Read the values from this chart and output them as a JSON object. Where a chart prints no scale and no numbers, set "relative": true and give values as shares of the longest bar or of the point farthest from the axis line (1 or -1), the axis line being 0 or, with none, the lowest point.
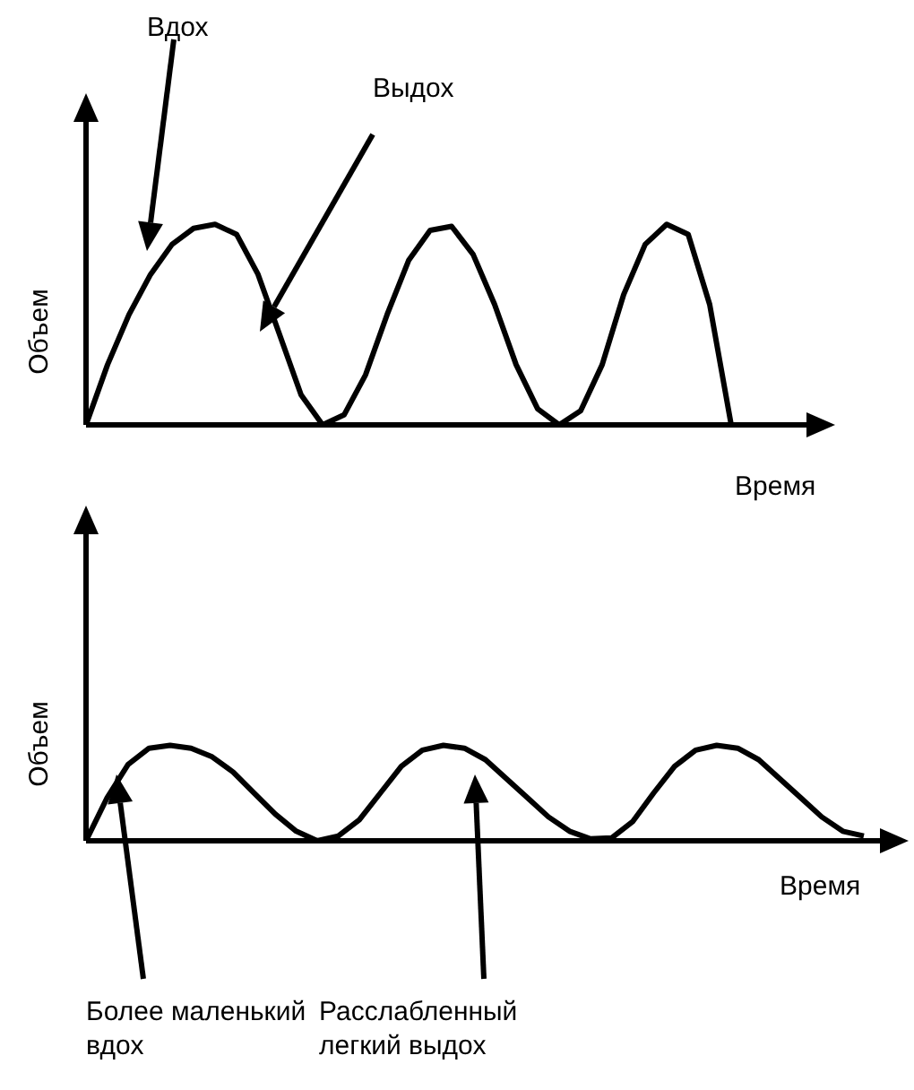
{
  "chart_data": [
    {
      "type": "line",
      "relative": true,
      "xlabel": "Время",
      "ylabel": "Объем",
      "categories": [
        null,
        null,
        null,
        null,
        null,
        null,
        null,
        null,
        null,
        null,
        null,
        null,
        null,
        null,
        null,
        null,
        null,
        null,
        null,
        null,
        null,
        null,
        null,
        null,
        null,
        null,
        null,
        null,
        null,
        null,
        null,
        null,
        null,
        null,
        null
      ],
      "series": [
        {
          "color": "#000000",
          "values": [
            0,
            0.3,
            0.55,
            0.75,
            0.9,
            0.98,
            1,
            0.95,
            0.75,
            0.45,
            0.15,
            0,
            0.05,
            0.25,
            0.55,
            0.82,
            0.97,
            0.99,
            0.85,
            0.6,
            0.3,
            0.08,
            0,
            0.07,
            0.3,
            0.65,
            0.9,
            1,
            0.95,
            0.6,
            0,
            null,
            null,
            null,
            null
          ]
        }
      ],
      "annotations": [
        "Вдох",
        "Выдох"
      ]
    },
    {
      "type": "line",
      "relative": true,
      "xlabel": "Время",
      "ylabel": "Объем",
      "categories": [
        null,
        null,
        null,
        null,
        null,
        null,
        null,
        null,
        null,
        null,
        null,
        null,
        null,
        null,
        null,
        null,
        null,
        null,
        null,
        null,
        null,
        null,
        null,
        null,
        null,
        null,
        null,
        null,
        null,
        null,
        null,
        null,
        null,
        null,
        null,
        null,
        null,
        null
      ],
      "series": [
        {
          "color": "#000000",
          "values": [
            0,
            0.45,
            0.8,
            0.97,
            1,
            0.97,
            0.88,
            0.72,
            0.5,
            0.28,
            0.1,
            0,
            0.05,
            0.22,
            0.5,
            0.78,
            0.95,
            1,
            0.97,
            0.85,
            0.65,
            0.45,
            0.25,
            0.1,
            0.02,
            0.03,
            0.2,
            0.5,
            0.78,
            0.95,
            1,
            0.97,
            0.85,
            0.65,
            0.45,
            0.25,
            0.1,
            0.05
          ]
        }
      ],
      "annotations": [
        "Более маленький вдох",
        "Расслабленный легкий выдох"
      ]
    }
  ]
}
